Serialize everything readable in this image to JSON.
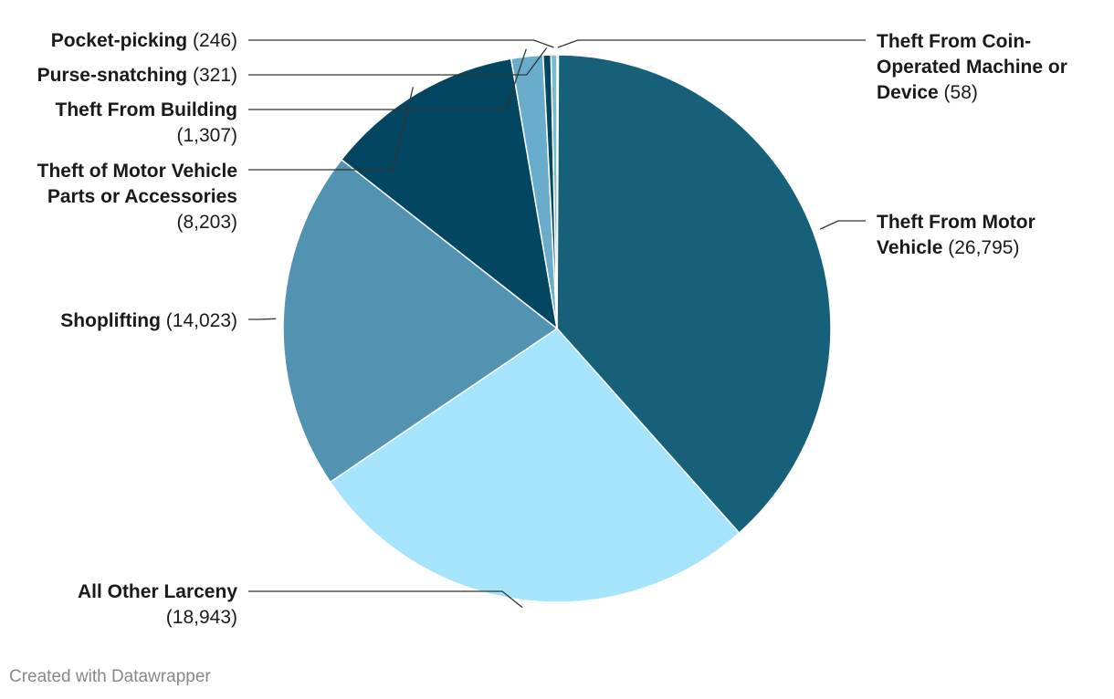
{
  "chart_data": {
    "type": "pie",
    "title": "",
    "slices": [
      {
        "label": "Theft From Coin-Operated Machine or Device",
        "value": 58,
        "display": "58",
        "color": "#5fa8c8"
      },
      {
        "label": "Theft From Motor Vehicle",
        "value": 26795,
        "display": "26,795",
        "color": "#17607a"
      },
      {
        "label": "All Other Larceny",
        "value": 18943,
        "display": "18,943",
        "color": "#a6e4fc"
      },
      {
        "label": "Shoplifting",
        "value": 14023,
        "display": "14,023",
        "color": "#5193b0"
      },
      {
        "label": "Theft of Motor Vehicle Parts or Accessories",
        "value": 8203,
        "display": "8,203",
        "color": "#024661"
      },
      {
        "label": "Theft From Building",
        "value": 1307,
        "display": "1,307",
        "color": "#6aaccb"
      },
      {
        "label": "Purse-snatching",
        "value": 321,
        "display": "321",
        "color": "#024661"
      },
      {
        "label": "Pocket-picking",
        "value": 246,
        "display": "246",
        "color": "#79bbd8"
      }
    ]
  },
  "footer": "Created with Datawrapper"
}
